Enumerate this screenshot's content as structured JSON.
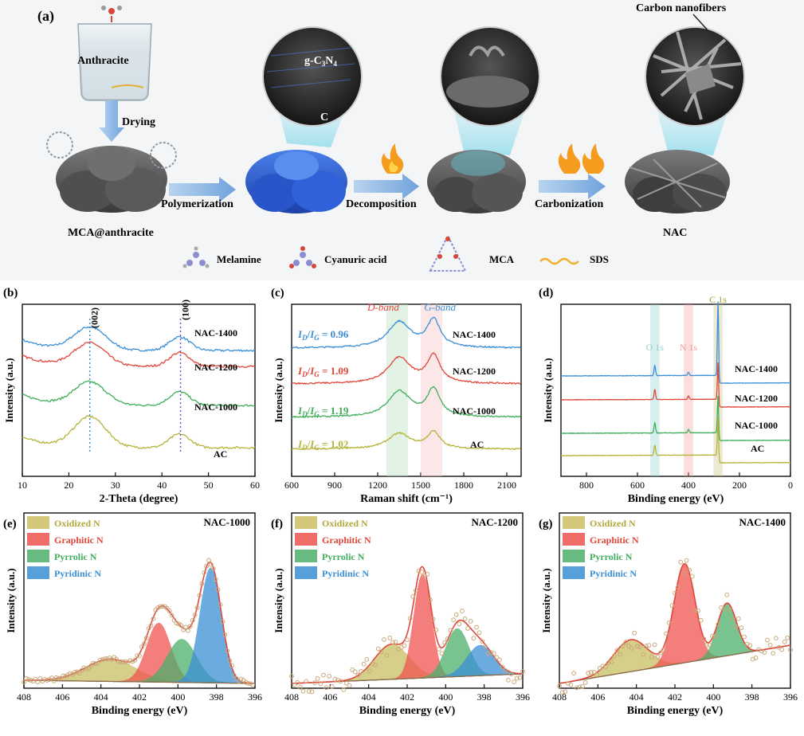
{
  "schematic": {
    "panel_label": "(a)",
    "labels": {
      "anthracite": "Anthracite",
      "drying": "Drying",
      "mca_anthracite": "MCA@anthracite",
      "polymerization": "Polymerization",
      "gcn_main": "g-C",
      "gcn_sub1": "3",
      "gcn_n": "N",
      "gcn_sub2": "4",
      "carbon": "C",
      "decomposition": "Decomposition",
      "carbonization": "Carbonization",
      "carbon_nanofibers": "Carbon nanofibers",
      "nac": "NAC"
    },
    "legend": [
      {
        "label": "Melamine",
        "icon": "melamine-molecule-icon"
      },
      {
        "label": "Cyanuric acid",
        "icon": "cyanuric-acid-molecule-icon"
      },
      {
        "label": "MCA",
        "icon": "mca-network-icon"
      },
      {
        "label": "SDS",
        "icon": "sds-wave-icon"
      }
    ]
  },
  "chart_data": [
    {
      "id": "b",
      "panel_label": "(b)",
      "type": "line",
      "xlabel": "2-Theta (degree)",
      "ylabel": "Intensity (a.u.)",
      "xlim": [
        10,
        60
      ],
      "xticks": [
        10,
        20,
        30,
        40,
        50,
        60
      ],
      "peak_markers": [
        {
          "x": 24.5,
          "label": "(002)"
        },
        {
          "x": 44,
          "label": "(100)"
        }
      ],
      "series": [
        {
          "name": "NAC-1400",
          "color": "#3b8fd6",
          "offset": 3.0
        },
        {
          "name": "NAC-1200",
          "color": "#e0473a",
          "offset": 2.0
        },
        {
          "name": "NAC-1000",
          "color": "#3fae5a",
          "offset": 1.0
        },
        {
          "name": "AC",
          "color": "#b5b43a",
          "offset": 0.0
        }
      ]
    },
    {
      "id": "c",
      "panel_label": "(c)",
      "type": "line",
      "xlabel": "Raman shift (cm⁻¹)",
      "ylabel": "Intensity (a.u.)",
      "xlim": [
        600,
        2200
      ],
      "xticks": [
        600,
        900,
        1200,
        1500,
        1800,
        2100
      ],
      "bands": [
        {
          "name": "D-band",
          "center": 1350,
          "color": "#e0473a"
        },
        {
          "name": "G-band",
          "center": 1590,
          "color": "#3b8fd6"
        }
      ],
      "series": [
        {
          "name": "NAC-1400",
          "color": "#3b8fd6",
          "ratio": "0.96"
        },
        {
          "name": "NAC-1200",
          "color": "#e0473a",
          "ratio": "1.09"
        },
        {
          "name": "NAC-1000",
          "color": "#3fae5a",
          "ratio": "1.19"
        },
        {
          "name": "AC",
          "color": "#b5b43a",
          "ratio": "1.02"
        }
      ],
      "ratio_label": {
        "i": "I",
        "d": "D",
        "g": "G",
        "eq": " = "
      }
    },
    {
      "id": "d",
      "panel_label": "(d)",
      "type": "line",
      "xlabel": "Binding energy (eV)",
      "ylabel": "Intensity (a.u.)",
      "xlim": [
        900,
        0
      ],
      "xticks": [
        800,
        600,
        400,
        200,
        0
      ],
      "bands": [
        {
          "name": "O 1s",
          "center": 532,
          "color": "#8fcfd0"
        },
        {
          "name": "N 1s",
          "center": 400,
          "color": "#f0a0a0"
        },
        {
          "name": "C 1s",
          "center": 284,
          "color": "#c8c080"
        }
      ],
      "series": [
        {
          "name": "NAC-1400",
          "color": "#3b8fd6"
        },
        {
          "name": "NAC-1200",
          "color": "#e0473a"
        },
        {
          "name": "NAC-1000",
          "color": "#3fae5a"
        },
        {
          "name": "AC",
          "color": "#b5b43a"
        }
      ]
    },
    {
      "id": "e",
      "panel_label": "(e)",
      "type": "scatter",
      "title": "NAC-1000",
      "xlabel": "Binding energy (eV)",
      "ylabel": "Intensity (a.u.)",
      "xlim": [
        408,
        396
      ],
      "xticks": [
        408,
        406,
        404,
        402,
        400,
        398,
        396
      ],
      "components": [
        {
          "name": "Oxidized",
          "center": 403.5,
          "height": 0.14,
          "width": 1.3
        },
        {
          "name": "Graphitic",
          "center": 401.0,
          "height": 0.37,
          "width": 0.62
        },
        {
          "name": "Pyrrolic",
          "center": 399.8,
          "height": 0.27,
          "width": 0.75
        },
        {
          "name": "Pyridinic",
          "center": 398.3,
          "height": 0.72,
          "width": 0.55
        }
      ]
    },
    {
      "id": "f",
      "panel_label": "(f)",
      "type": "scatter",
      "title": "NAC-1200",
      "xlabel": "Binding energy (eV)",
      "ylabel": "Intensity (a.u.)",
      "xlim": [
        408,
        396
      ],
      "xticks": [
        408,
        406,
        404,
        402,
        400,
        398,
        396
      ],
      "components": [
        {
          "name": "Oxidized",
          "center": 402.8,
          "height": 0.22,
          "width": 0.9
        },
        {
          "name": "Graphitic",
          "center": 401.2,
          "height": 0.65,
          "width": 0.45
        },
        {
          "name": "Pyrrolic",
          "center": 399.4,
          "height": 0.3,
          "width": 0.6
        },
        {
          "name": "Pyridinic",
          "center": 398.2,
          "height": 0.19,
          "width": 0.7
        }
      ]
    },
    {
      "id": "g",
      "panel_label": "(g)",
      "type": "scatter",
      "title": "NAC-1400",
      "xlabel": "Binding energy (eV)",
      "ylabel": "Intensity (a.u.)",
      "xlim": [
        408,
        396
      ],
      "xticks": [
        408,
        406,
        404,
        402,
        400,
        398,
        396
      ],
      "components": [
        {
          "name": "Oxidized",
          "center": 404.3,
          "height": 0.2,
          "width": 0.9
        },
        {
          "name": "Graphitic",
          "center": 401.5,
          "height": 0.62,
          "width": 0.55
        },
        {
          "name": "Pyrrolic",
          "center": 399.3,
          "height": 0.33,
          "width": 0.5
        },
        {
          "name": "Pyridinic",
          "center": 398.0,
          "height": 0.0,
          "width": 0.5
        }
      ]
    }
  ],
  "xps_legend": [
    {
      "name": "Oxidized",
      "suffix": "N",
      "color": "#c9bf62",
      "text_color": "#b5a93a"
    },
    {
      "name": "Graphitic",
      "suffix": "N",
      "color": "#ef5350",
      "text_color": "#e0473a"
    },
    {
      "name": "Pyrrolic",
      "suffix": "N",
      "color": "#4caf6a",
      "text_color": "#3fae5a"
    },
    {
      "name": "Pyridinic",
      "suffix": "N",
      "color": "#3b8fd6",
      "text_color": "#3b8fd6"
    }
  ],
  "colors": {
    "axis": "#111111",
    "envelope": "#e0473a",
    "points": "#c9a77a",
    "baseline": "#8a6a4a"
  }
}
